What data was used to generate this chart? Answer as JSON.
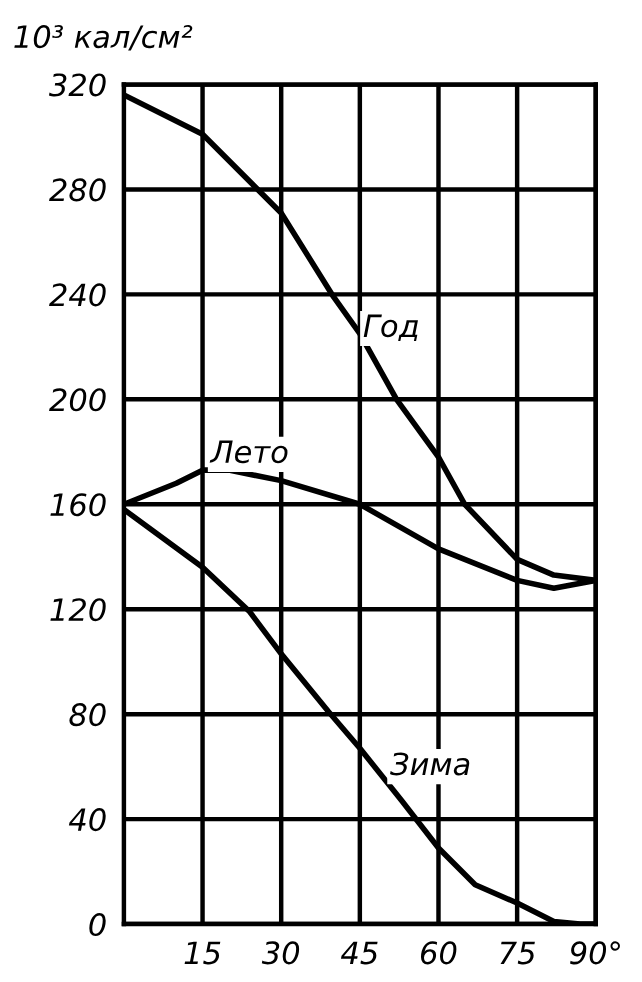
{
  "chart_data": {
    "type": "line",
    "ylabel": "10³ кал/см²",
    "xlim": [
      0,
      90
    ],
    "ylim": [
      0,
      320
    ],
    "xticks": [
      15,
      30,
      45,
      60,
      75,
      {
        "value": 90,
        "label": "90°"
      }
    ],
    "yticks": [
      0,
      40,
      80,
      120,
      160,
      200,
      240,
      280,
      320
    ],
    "grid": true,
    "legend": false,
    "marker": "none",
    "line_style": "solid",
    "series": [
      {
        "color": "#000000",
        "x": [
          0,
          15,
          30,
          40,
          45,
          52,
          60,
          65,
          75,
          82,
          90
        ],
        "values": [
          316,
          301,
          271,
          239,
          225,
          200,
          178,
          160,
          139,
          133,
          131
        ]
      },
      {
        "color": "#000000",
        "x": [
          0,
          10,
          15,
          20,
          30,
          45,
          60,
          75,
          82,
          90
        ],
        "values": [
          160,
          168,
          173,
          173,
          169,
          160,
          143,
          131,
          128,
          131
        ]
      },
      {
        "color": "#000000",
        "x": [
          0,
          15,
          24,
          30,
          39,
          45,
          53,
          60,
          67,
          75,
          82,
          87,
          90
        ],
        "values": [
          158,
          136,
          119,
          103,
          81,
          67,
          47,
          29,
          15,
          8,
          1,
          0,
          0
        ]
      }
    ],
    "annotations": [
      {
        "text": "Год",
        "x": 51,
        "y": 227
      },
      {
        "text": "Лето",
        "x": 24,
        "y": 179
      },
      {
        "text": "Зима",
        "x": 58.5,
        "y": 60
      }
    ]
  }
}
